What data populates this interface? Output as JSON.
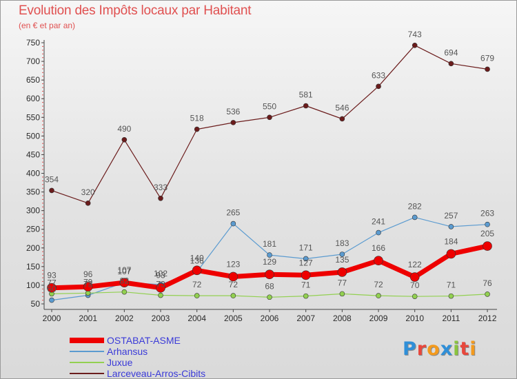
{
  "title": "Evolution des Impôts locaux par Habitant",
  "subtitle": "(en € et par an)",
  "brand": {
    "text": "Proxiti",
    "letter_colors": [
      "#2f8fd8",
      "#e8473c",
      "#f39a1d",
      "#2f8fd8",
      "#8ac43f",
      "#e8473c",
      "#f39a1d"
    ]
  },
  "chart_data": {
    "type": "line",
    "title": "Evolution des Impôts locaux par Habitant",
    "subtitle": "(en € et par an)",
    "xlabel": "",
    "ylabel": "",
    "ylim": [
      50,
      750
    ],
    "yticks": [
      50,
      100,
      150,
      200,
      250,
      300,
      350,
      400,
      450,
      500,
      550,
      600,
      650,
      700,
      750
    ],
    "grid": false,
    "legend_position": "bottom-left",
    "x": [
      "2000",
      "2001",
      "2002",
      "2003",
      "2004",
      "2005",
      "2006",
      "2007",
      "2008",
      "2009",
      "2010",
      "2011",
      "2012"
    ],
    "series": [
      {
        "name": "Larceveau-Arros-Cibits",
        "color": "#6b1c1c",
        "line_width": 1.2,
        "marker_radius": 3.5,
        "label_offset": -12,
        "values": [
          354,
          320,
          490,
          333,
          518,
          536,
          550,
          581,
          546,
          633,
          743,
          694,
          679
        ]
      },
      {
        "name": "Arhansus",
        "color": "#5b9bd0",
        "line_width": 1.2,
        "marker_radius": 3.5,
        "label_offset": -12,
        "values": [
          60,
          73,
          107,
          102,
          136,
          265,
          181,
          171,
          183,
          241,
          282,
          257,
          263
        ]
      },
      {
        "name": "Juxue",
        "color": "#92d050",
        "line_width": 1.2,
        "marker_radius": 3.5,
        "label_offset": -12,
        "values": [
          77,
          79,
          82,
          73,
          72,
          72,
          68,
          71,
          77,
          72,
          70,
          71,
          76
        ]
      },
      {
        "name": "OSTABAT-ASME",
        "color": "#ee0000",
        "line_width": 7,
        "marker_radius": 6.5,
        "label_offset": -14,
        "values": [
          93,
          96,
          107,
          93,
          140,
          123,
          129,
          127,
          135,
          166,
          122,
          184,
          205
        ]
      }
    ],
    "legend_order": [
      "OSTABAT-ASME",
      "Arhansus",
      "Juxue",
      "Larceveau-Arros-Cibits"
    ]
  }
}
